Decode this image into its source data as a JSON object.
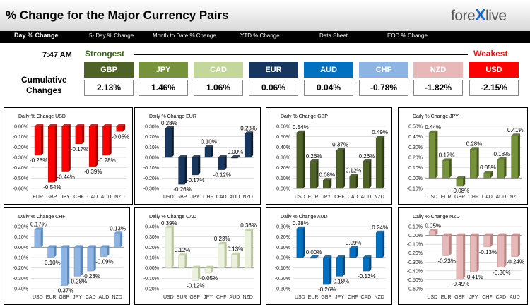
{
  "header": {
    "title": "% Change for the Major Currency Pairs",
    "logo_text_a": "fore",
    "logo_text_x": "X",
    "logo_text_b": "live"
  },
  "nav": [
    "Day % Change",
    "5- Day % Change",
    "Month to Date % Change",
    "YTD % Change",
    "Data Sheet",
    "EOD % Change"
  ],
  "summary": {
    "time": "7:47 AM",
    "strongest_label": "Strongest",
    "weakest_label": "Weakest",
    "cumulative_line1": "Cumulative",
    "cumulative_line2": "Changes",
    "tiles": [
      {
        "ccy": "GBP",
        "value": "2.13%",
        "color": "#4f6228"
      },
      {
        "ccy": "JPY",
        "value": "1.46%",
        "color": "#76933c"
      },
      {
        "ccy": "CAD",
        "value": "1.06%",
        "color": "#c4d79b"
      },
      {
        "ccy": "EUR",
        "value": "0.06%",
        "color": "#17375e"
      },
      {
        "ccy": "AUD",
        "value": "0.04%",
        "color": "#0070c0"
      },
      {
        "ccy": "CHF",
        "value": "-0.78%",
        "color": "#8db4e2"
      },
      {
        "ccy": "NZD",
        "value": "-1.82%",
        "color": "#e6b8b7"
      },
      {
        "ccy": "USD",
        "value": "-2.15%",
        "color": "#ff0000"
      }
    ]
  },
  "chart_data": [
    {
      "type": "bar",
      "title": "Daily % Change USD",
      "categories": [
        "EUR",
        "GBP",
        "JPY",
        "CHF",
        "CAD",
        "AUD",
        "NZD"
      ],
      "values": [
        -0.28,
        -0.54,
        -0.44,
        -0.17,
        -0.39,
        -0.28,
        -0.05
      ],
      "labels": [
        "-0.28%",
        "-0.54%",
        "-0.44%",
        "-0.17%",
        "-0.39%",
        "-0.28%",
        "-0.05%"
      ],
      "ylim": [
        -0.6,
        0
      ],
      "ticks": [
        0,
        -0.1,
        -0.2,
        -0.3,
        -0.4,
        -0.5,
        -0.6
      ],
      "tick_labels": [
        "0.00%",
        "-0.10%",
        "-0.20%",
        "-0.30%",
        "-0.40%",
        "-0.50%",
        "-0.60%"
      ],
      "color": "#ff0000",
      "side": "#a00000",
      "grid": true
    },
    {
      "type": "bar",
      "title": "Daily % Change EUR",
      "categories": [
        "USD",
        "GBP",
        "JPY",
        "CHF",
        "CAD",
        "AUD",
        "NZD"
      ],
      "values": [
        0.28,
        -0.26,
        -0.17,
        0.1,
        -0.12,
        0.0,
        0.23
      ],
      "labels": [
        "0.28%",
        "-0.26%",
        "-0.17%",
        "0.10%",
        "-0.12%",
        "0.00%",
        "0.23%"
      ],
      "ylim": [
        -0.3,
        0.3
      ],
      "ticks": [
        0.3,
        0.2,
        0.1,
        0,
        -0.1,
        -0.2,
        -0.3
      ],
      "tick_labels": [
        "0.30%",
        "0.20%",
        "0.10%",
        "0.00%",
        "-0.10%",
        "-0.20%",
        "-0.30%"
      ],
      "color": "#17375e",
      "side": "#0b1c30",
      "grid": true
    },
    {
      "type": "bar",
      "title": "Daily % Change GBP",
      "categories": [
        "USD",
        "EUR",
        "JPY",
        "CHF",
        "CAD",
        "AUD",
        "NZD"
      ],
      "values": [
        0.54,
        0.26,
        0.08,
        0.37,
        0.12,
        0.26,
        0.49
      ],
      "labels": [
        "0.54%",
        "0.26%",
        "0.08%",
        "0.37%",
        "0.12%",
        "0.26%",
        "0.49%"
      ],
      "ylim": [
        0,
        0.6
      ],
      "ticks": [
        0.6,
        0.5,
        0.4,
        0.3,
        0.2,
        0.1,
        0
      ],
      "tick_labels": [
        "0.60%",
        "0.50%",
        "0.40%",
        "0.30%",
        "0.20%",
        "0.10%",
        "0.00%"
      ],
      "color": "#4f6228",
      "side": "#2c3816",
      "grid": true
    },
    {
      "type": "bar",
      "title": "Daily % Change JPY",
      "categories": [
        "USD",
        "EUR",
        "GBP",
        "CHF",
        "CAD",
        "AUD",
        "NZD"
      ],
      "values": [
        0.44,
        0.17,
        -0.08,
        0.28,
        0.05,
        0.18,
        0.41
      ],
      "labels": [
        "0.44%",
        "0.17%",
        "-0.08%",
        "0.28%",
        "0.05%",
        "0.18%",
        "0.41%"
      ],
      "ylim": [
        -0.1,
        0.5
      ],
      "ticks": [
        0.5,
        0.4,
        0.3,
        0.2,
        0.1,
        0,
        -0.1
      ],
      "tick_labels": [
        "0.50%",
        "0.40%",
        "0.30%",
        "0.20%",
        "0.10%",
        "0.00%",
        "-0.10%"
      ],
      "color": "#76933c",
      "side": "#46581f",
      "grid": true
    },
    {
      "type": "bar",
      "title": "Daily % Change CHF",
      "categories": [
        "USD",
        "EUR",
        "GBP",
        "JPY",
        "CAD",
        "AUD",
        "NZD"
      ],
      "values": [
        0.17,
        -0.1,
        -0.37,
        -0.28,
        -0.23,
        -0.09,
        0.13
      ],
      "labels": [
        "0.17%",
        "-0.10%",
        "-0.37%",
        "-0.28%",
        "-0.23%",
        "-0.09%",
        "0.13%"
      ],
      "ylim": [
        -0.4,
        0.2
      ],
      "ticks": [
        0.2,
        0.1,
        0,
        -0.1,
        -0.2,
        -0.3,
        -0.4
      ],
      "tick_labels": [
        "0.20%",
        "0.10%",
        "0.00%",
        "-0.10%",
        "-0.20%",
        "-0.30%",
        "-0.40%"
      ],
      "color": "#8db4e2",
      "side": "#5a86b8",
      "grid": true
    },
    {
      "type": "bar",
      "title": "Daily % Change CAD",
      "categories": [
        "USD",
        "EUR",
        "GBP",
        "JPY",
        "CHF",
        "AUD",
        "NZD"
      ],
      "values": [
        0.39,
        0.12,
        -0.12,
        -0.05,
        0.23,
        0.13,
        0.36
      ],
      "labels": [
        "0.39%",
        "0.12%",
        "-0.12%",
        "-0.05%",
        "0.23%",
        "0.13%",
        "0.36%"
      ],
      "ylim": [
        -0.2,
        0.4
      ],
      "ticks": [
        0.4,
        0.3,
        0.2,
        0.1,
        0,
        -0.1,
        -0.2
      ],
      "tick_labels": [
        "0.40%",
        "0.30%",
        "0.20%",
        "0.10%",
        "0.00%",
        "-0.10%",
        "-0.20%"
      ],
      "color": "#ebf1de",
      "side": "#b8c79a",
      "grid": true
    },
    {
      "type": "bar",
      "title": "Daily % Change AUD",
      "categories": [
        "USD",
        "EUR",
        "GBP",
        "JPY",
        "CHF",
        "CAD",
        "NZD"
      ],
      "values": [
        0.28,
        0.0,
        -0.26,
        -0.18,
        0.09,
        -0.13,
        0.24
      ],
      "labels": [
        "0.28%",
        "0.00%",
        "-0.26%",
        "-0.18%",
        "0.09%",
        "-0.13%",
        "0.24%"
      ],
      "ylim": [
        -0.3,
        0.3
      ],
      "ticks": [
        0.3,
        0.2,
        0.1,
        0,
        -0.1,
        -0.2,
        -0.3
      ],
      "tick_labels": [
        "0.30%",
        "0.20%",
        "0.10%",
        "0.00%",
        "-0.10%",
        "-0.20%",
        "-0.30%"
      ],
      "color": "#0070c0",
      "side": "#004a80",
      "grid": true
    },
    {
      "type": "bar",
      "title": "Daily % Change NZD",
      "categories": [
        "USD",
        "EUR",
        "GBP",
        "JPY",
        "CHF",
        "CAD",
        "AUD"
      ],
      "values": [
        0.05,
        -0.23,
        -0.49,
        -0.41,
        -0.13,
        -0.36,
        -0.24
      ],
      "labels": [
        "0.05%",
        "-0.23%",
        "-0.49%",
        "-0.41%",
        "-0.13%",
        "-0.36%",
        "-0.24%"
      ],
      "ylim": [
        -0.6,
        0.1
      ],
      "ticks": [
        0.1,
        0,
        -0.1,
        -0.2,
        -0.3,
        -0.4,
        -0.5,
        -0.6
      ],
      "tick_labels": [
        "0.10%",
        "0.00%",
        "-0.10%",
        "-0.20%",
        "-0.30%",
        "-0.40%",
        "-0.50%",
        "-0.60%"
      ],
      "color": "#e6b8b7",
      "side": "#b88584",
      "grid": true
    }
  ]
}
